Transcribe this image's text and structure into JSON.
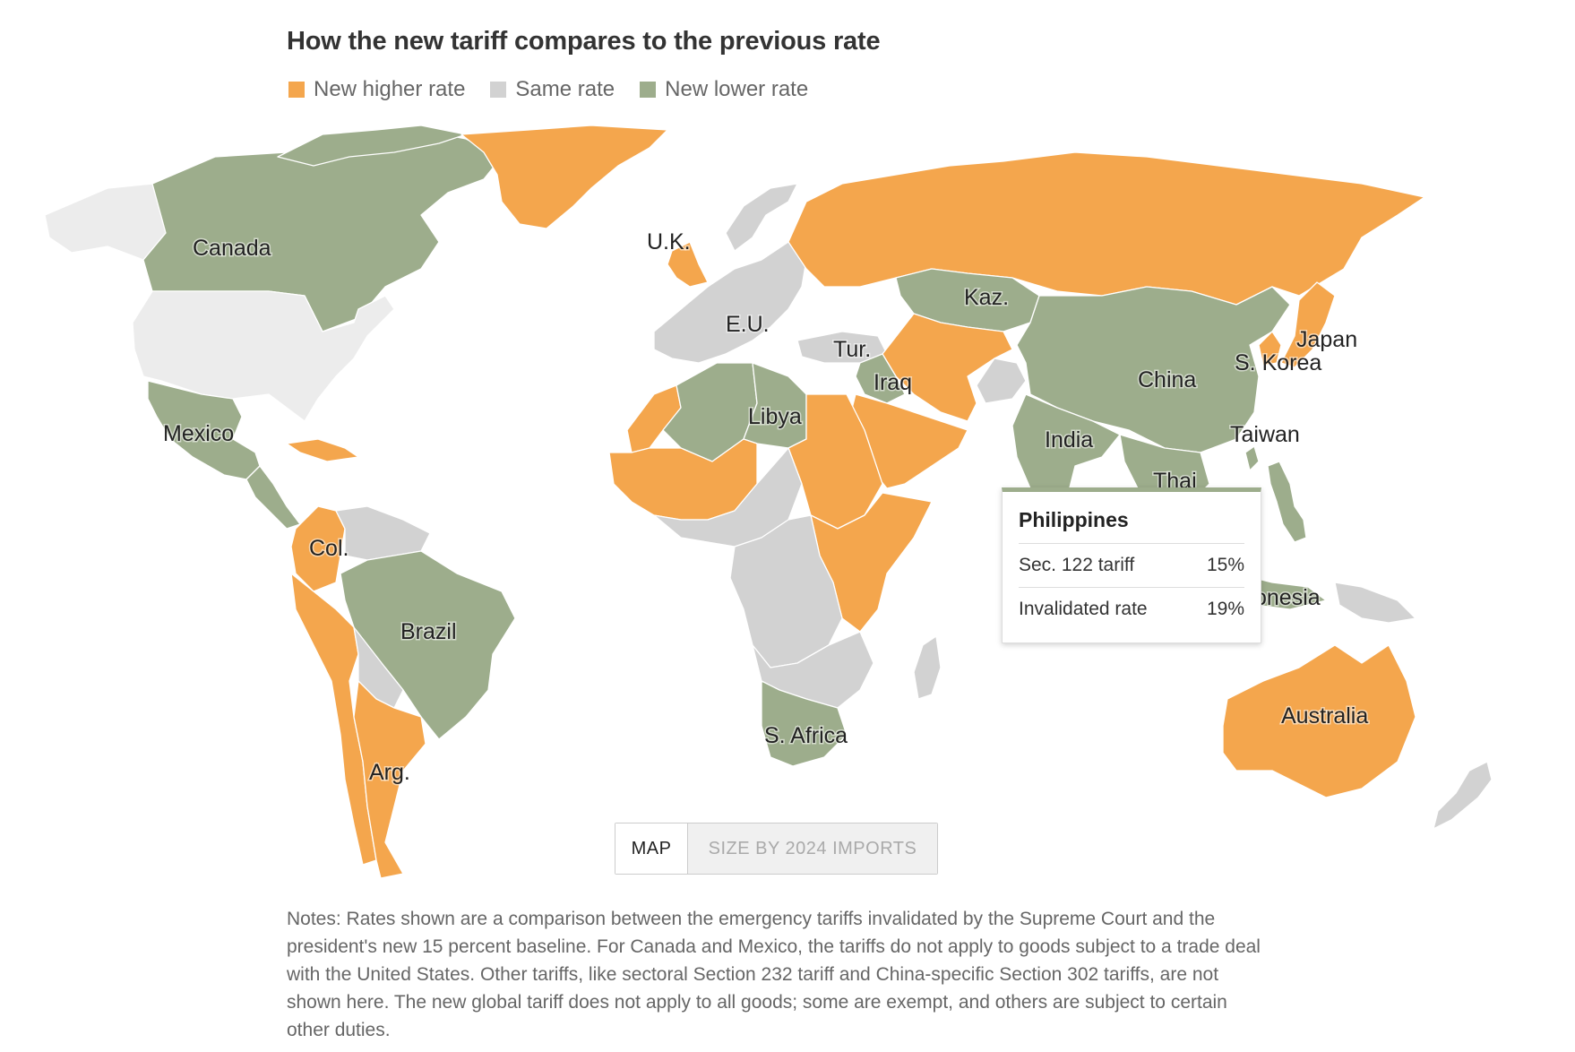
{
  "title": "How the new tariff compares to the previous rate",
  "colors": {
    "higher": "#f4a64d",
    "same": "#d2d2d2",
    "lower": "#9dad8c",
    "no_data": "#ececec"
  },
  "legend": [
    {
      "key": "higher",
      "label": "New higher rate"
    },
    {
      "key": "same",
      "label": "Same rate"
    },
    {
      "key": "lower",
      "label": "New lower rate"
    }
  ],
  "country_labels": {
    "canada": "Canada",
    "uk": "U.K.",
    "eu": "E.U.",
    "kazakhstan": "Kaz.",
    "japan": "Japan",
    "south_korea": "S. Korea",
    "turkey": "Tur.",
    "iraq": "Iraq",
    "china": "China",
    "mexico": "Mexico",
    "libya": "Libya",
    "india": "India",
    "taiwan": "Taiwan",
    "thailand": "Thai",
    "colombia": "Col.",
    "brazil": "Brazil",
    "indonesia": "onesia",
    "australia": "Australia",
    "south_africa": "S. Africa",
    "argentina": "Arg."
  },
  "regions": {
    "canada": "lower",
    "greenland": "higher",
    "usa": "no_data",
    "alaska": "no_data",
    "mexico": "lower",
    "central_america": "lower",
    "caribbean": "higher",
    "colombia": "higher",
    "venezuela_guianas": "same",
    "brazil": "lower",
    "peru_chile": "higher",
    "bolivia_paraguay": "same",
    "argentina": "higher",
    "uruguay": "higher",
    "uk": "higher",
    "eu": "same",
    "norway": "same",
    "russia": "higher",
    "kazakhstan": "lower",
    "turkey": "same",
    "iraq": "lower",
    "middle_east": "higher",
    "iran_central_asia": "higher",
    "afghanistan": "same",
    "china": "lower",
    "india": "lower",
    "mongolia_korea_link": "lower",
    "japan": "higher",
    "south_korea": "higher",
    "taiwan": "lower",
    "southeast_asia": "lower",
    "philippines": "lower",
    "indonesia": "lower",
    "papua": "same",
    "australia": "higher",
    "new_zealand": "same",
    "north_africa_west": "higher",
    "algeria": "lower",
    "libya": "lower",
    "egypt_sudan": "higher",
    "west_africa": "higher",
    "sahel_central": "same",
    "central_africa": "same",
    "east_africa": "higher",
    "southern_africa": "same",
    "south_africa": "lower",
    "madagascar": "same"
  },
  "tooltip": {
    "name": "Philippines",
    "rows": [
      {
        "label": "Sec. 122 tariff",
        "value": "15%"
      },
      {
        "label": "Invalidated rate",
        "value": "19%"
      }
    ]
  },
  "toggle": {
    "map_label": "MAP",
    "size_label": "SIZE BY 2024 IMPORTS"
  },
  "notes": "Notes: Rates shown are a comparison between the emergency tariffs invalidated by the Supreme Court and the president's new 15 percent baseline. For Canada and Mexico, the tariffs do not apply to goods subject to a trade deal with the United States. Other tariffs, like sectoral Section 232 tariff and China-specific Section 302 tariffs, are not shown here. The new global tariff does not apply to all goods; some are exempt, and others are subject to certain other duties."
}
